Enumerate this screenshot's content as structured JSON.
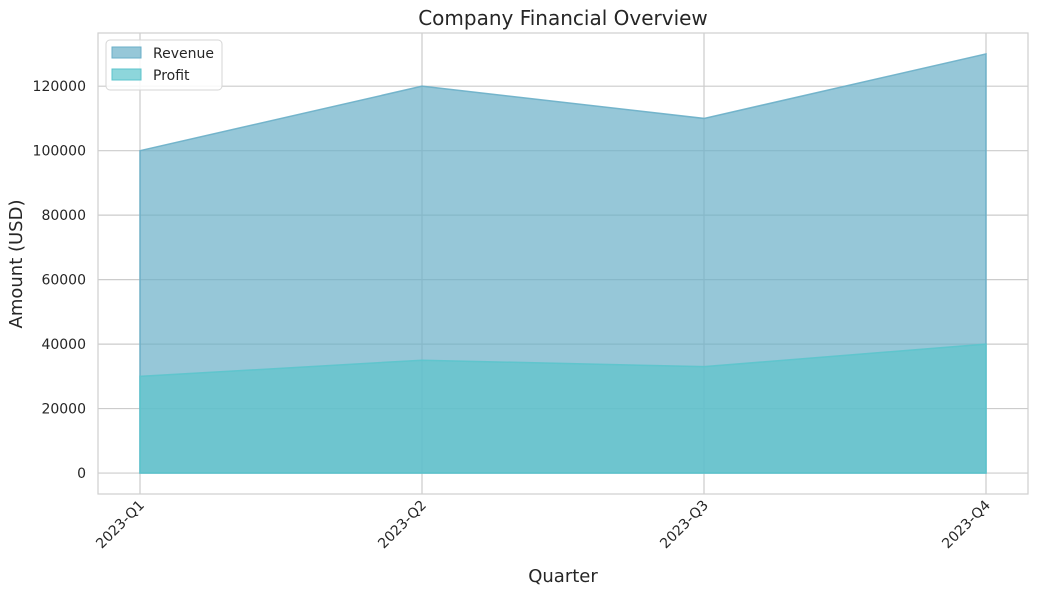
{
  "chart_data": {
    "type": "area",
    "title": "Company Financial Overview",
    "xlabel": "Quarter",
    "ylabel": "Amount (USD)",
    "categories": [
      "2023-Q1",
      "2023-Q2",
      "2023-Q3",
      "2023-Q4"
    ],
    "series": [
      {
        "name": "Revenue",
        "values": [
          100000,
          120000,
          110000,
          130000
        ],
        "color": "#6aafc8"
      },
      {
        "name": "Profit",
        "values": [
          30000,
          35000,
          33000,
          40000
        ],
        "color": "#5cc4cc"
      }
    ],
    "yticks": [
      0,
      20000,
      40000,
      60000,
      80000,
      100000,
      120000
    ],
    "ylim": [
      -6500,
      136500
    ],
    "grid": true,
    "legend_position": "top-left",
    "x_tick_rotation": "45 degrees"
  }
}
